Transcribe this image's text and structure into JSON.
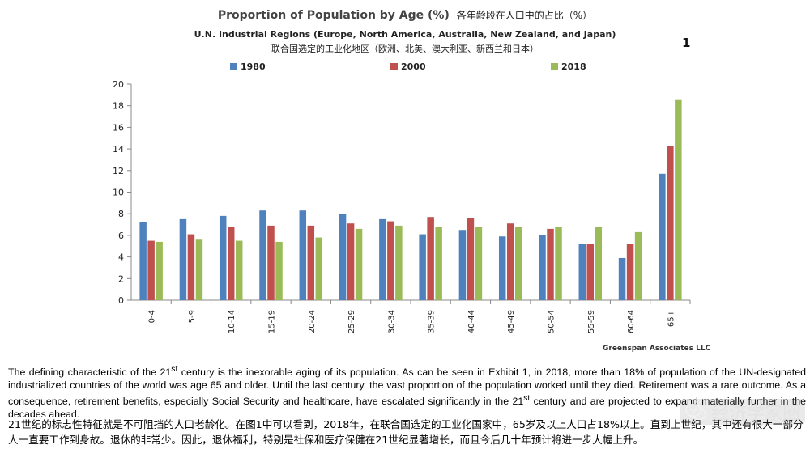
{
  "header": {
    "title": "Proportion of Population by Age (%)",
    "title_zh": "各年龄段在人口中的占比（%）",
    "subtitle": "U.N. Industrial Regions (Europe, North America, Australia, New Zealand, and Japan)",
    "subtitle_zh": "联合国选定的工业化地区（欧洲、北美、澳大利亚、新西兰和日本）",
    "exhibit_number": "1"
  },
  "source": "Greenspan Associates LLC",
  "colors": {
    "1980": "#4f81bd",
    "2000": "#c0504d",
    "2018": "#9bbb59",
    "axis": "#888888"
  },
  "chart_data": {
    "type": "bar",
    "title": "Proportion of Population by Age (%)",
    "subtitle": "U.N. Industrial Regions (Europe, North America, Australia, New Zealand, and Japan)",
    "categories": [
      "0-4",
      "5-9",
      "10-14",
      "15-19",
      "20-24",
      "25-29",
      "30-34",
      "35-39",
      "40-44",
      "45-49",
      "50-54",
      "55-59",
      "60-64",
      "65+"
    ],
    "series": [
      {
        "name": "1980",
        "values": [
          7.2,
          7.5,
          7.8,
          8.3,
          8.3,
          8.0,
          7.5,
          6.1,
          6.5,
          5.9,
          6.0,
          5.2,
          3.9,
          11.7
        ]
      },
      {
        "name": "2000",
        "values": [
          5.5,
          6.1,
          6.8,
          6.9,
          6.9,
          7.1,
          7.3,
          7.7,
          7.6,
          7.1,
          6.6,
          5.2,
          5.2,
          14.3
        ]
      },
      {
        "name": "2018",
        "values": [
          5.4,
          5.6,
          5.5,
          5.4,
          5.8,
          6.6,
          6.9,
          6.8,
          6.8,
          6.8,
          6.8,
          6.8,
          6.3,
          18.6
        ]
      }
    ],
    "yticks": [
      0,
      2,
      4,
      6,
      8,
      10,
      12,
      14,
      16,
      18,
      20
    ],
    "ylim": [
      0,
      20
    ],
    "legend": "top",
    "grid": false
  },
  "text": {
    "en_p1": "The defining characteristic of the 21",
    "en_sup1": "st",
    "en_p2": " century is the inexorable aging of its population.  As can be seen in Exhibit 1, in 2018, more than 18% of population of the UN-designated industrialized countries of the world was age 65 and older.  Until the last century, the vast proportion of the population worked until they died.  Retirement was a rare outcome.  As a consequence, retirement benefits, especially Social Security and healthcare, have escalated significantly in the 21",
    "en_sup2": "st",
    "en_p3": " century and are projected to expand materially further in the decades ahead.",
    "zh": "21世纪的标志性特征就是不可阻挡的人口老龄化。在图1中可以看到，2018年，在联合国选定的工业化国家中，65岁及以上人口占18%以上。直到上世纪，其中还有很大一部分人一直要工作到身故。退休的非常少。因此，退休福利，特别是社保和医疗保健在21世纪显著增长，而且今后几十年预计将进一步大幅上升。"
  },
  "watermark": {
    "text": "经济学家圈",
    "icon": "wechat-icon"
  }
}
